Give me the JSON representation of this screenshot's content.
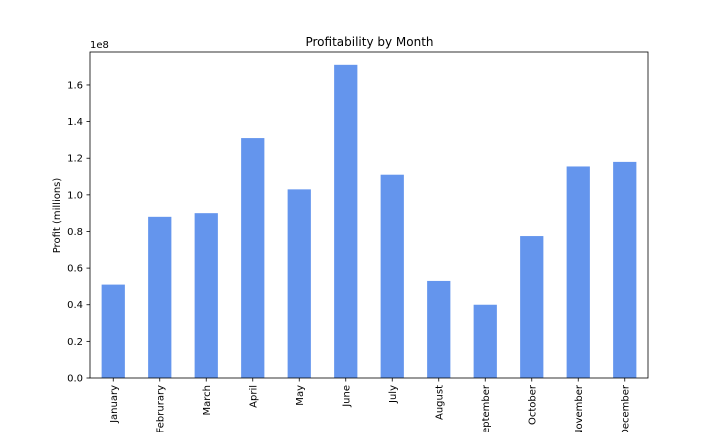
{
  "chart_data": {
    "type": "bar",
    "title": "Profitability by Month",
    "xlabel": "",
    "ylabel": "Profit (millions)",
    "y_offset_label": "1e8",
    "y_scale": 100000000,
    "categories": [
      "January",
      "Februrary",
      "March",
      "April",
      "May",
      "June",
      "July",
      "August",
      "September",
      "October",
      "November",
      "December"
    ],
    "values": [
      51000000,
      88000000,
      90000000,
      131000000,
      103000000,
      171000000,
      111000000,
      53000000,
      40000000,
      77500000,
      115500000,
      118000000
    ],
    "ylim": [
      0,
      178000000
    ],
    "yticks": [
      0,
      20000000,
      40000000,
      60000000,
      80000000,
      100000000,
      120000000,
      140000000,
      160000000
    ],
    "ytick_labels": [
      "0.0",
      "0.2",
      "0.4",
      "0.6",
      "0.8",
      "1.0",
      "1.2",
      "1.4",
      "1.6"
    ],
    "bar_color": "#6495ed",
    "grid": false,
    "legend": "none"
  }
}
